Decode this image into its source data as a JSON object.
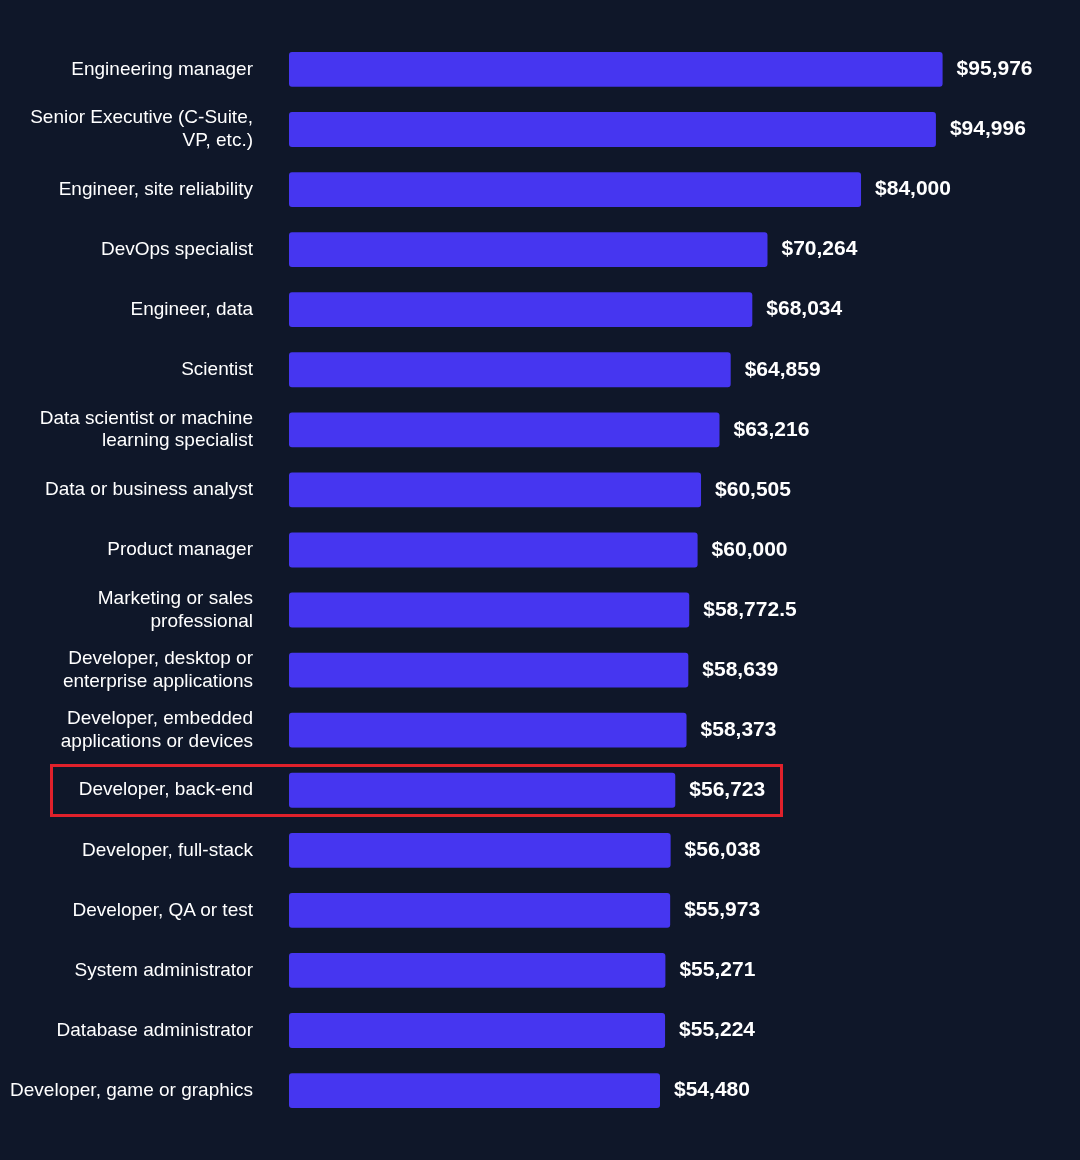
{
  "chart_data": {
    "type": "bar",
    "orientation": "horizontal",
    "color": "#4636f0",
    "categories": [
      "Engineering manager",
      "Senior Executive (C-Suite, VP, etc.)",
      "Engineer, site reliability",
      "DevOps specialist",
      "Engineer, data",
      "Scientist",
      "Data scientist or machine learning specialist",
      "Data or business analyst",
      "Product manager",
      "Marketing or sales professional",
      "Developer, desktop or enterprise applications",
      "Developer, embedded applications or devices",
      "Developer, back-end",
      "Developer, full-stack",
      "Developer, QA or test",
      "System administrator",
      "Database administrator",
      "Developer, game or graphics"
    ],
    "values": [
      95976,
      94996,
      84000,
      70264,
      68034,
      64859,
      63216,
      60505,
      60000,
      58772.5,
      58639,
      58373,
      56723,
      56038,
      55973,
      55271,
      55224,
      54480
    ],
    "value_labels": [
      "$95,976",
      "$94,996",
      "$84,000",
      "$70,264",
      "$68,034",
      "$64,859",
      "$63,216",
      "$60,505",
      "$60,000",
      "$58,772.5",
      "$58,639",
      "$58,373",
      "$56,723",
      "$56,038",
      "$55,973",
      "$55,271",
      "$55,224",
      "$54,480"
    ],
    "tick_labels": "y",
    "grid": false,
    "legend": false
  }
}
